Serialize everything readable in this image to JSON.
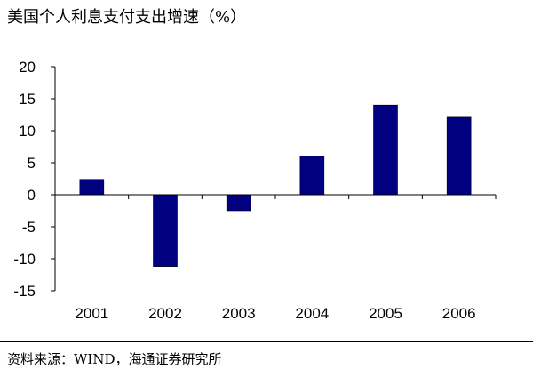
{
  "title": "美国个人利息支付支出增速（%）",
  "source": "资料来源：WIND，海通证券研究所",
  "colors": {
    "bar": "#000080",
    "axis": "#000000"
  },
  "chart_data": {
    "type": "bar",
    "title": "美国个人利息支付支出增速（%）",
    "categories": [
      "2001",
      "2002",
      "2003",
      "2004",
      "2005",
      "2006"
    ],
    "values": [
      2.4,
      -11.2,
      -2.5,
      6.0,
      14.0,
      12.1
    ],
    "ylim": [
      -15,
      20
    ],
    "yticks": [
      20,
      15,
      10,
      5,
      0,
      -5,
      -10,
      -15
    ],
    "ytick_labels": [
      "20",
      "15",
      "10",
      "5",
      "0",
      "-5",
      "-10",
      "-15"
    ],
    "xlabel": "",
    "ylabel": "",
    "grid": false,
    "legend": "none"
  }
}
